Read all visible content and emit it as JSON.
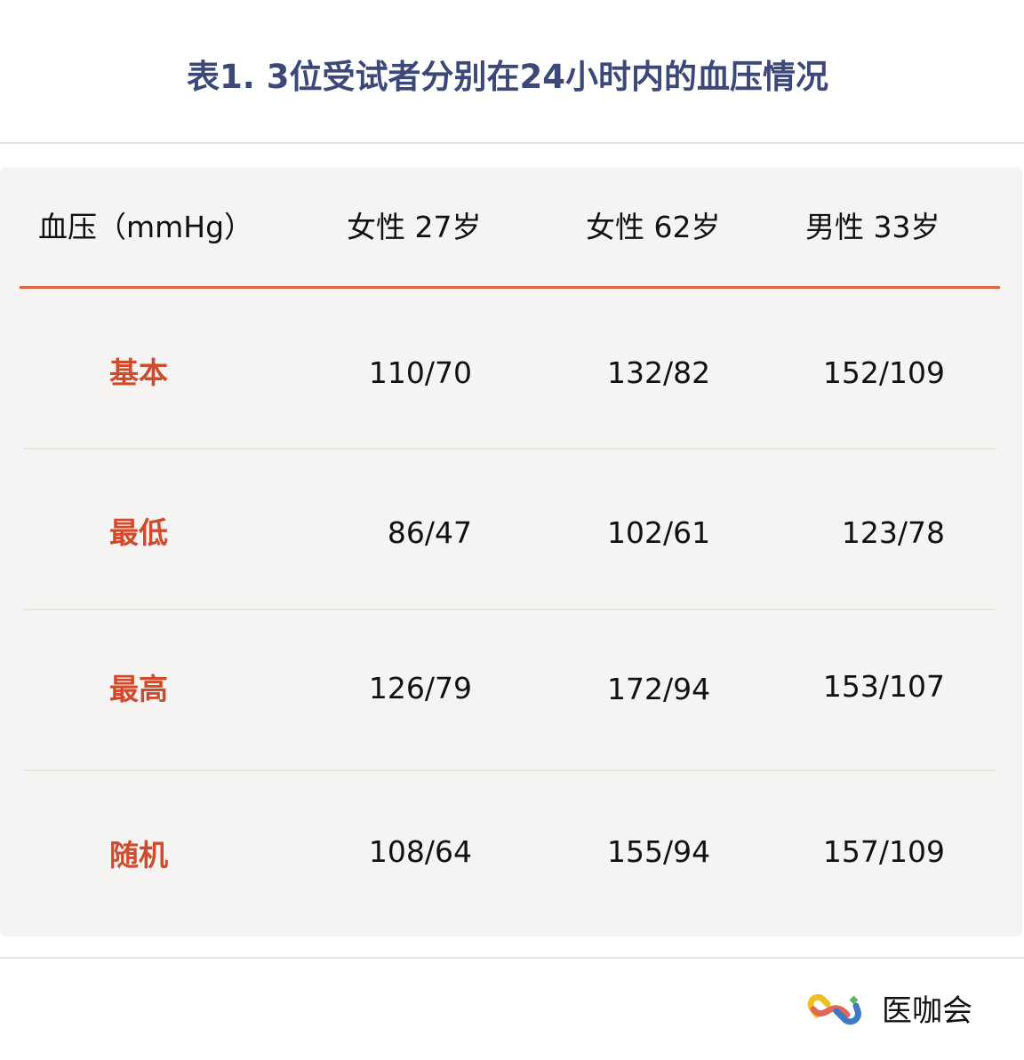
{
  "title": "表1. 3位受试者分别在24小时内的血压情况",
  "table": {
    "headers": [
      "血压（mmHg）",
      "女性 27岁",
      "女性 62岁",
      "男性 33岁"
    ],
    "rows": [
      {
        "label": "基本",
        "values": [
          "110/70",
          "132/82",
          "152/109"
        ]
      },
      {
        "label": "最低",
        "values": [
          "86/47",
          "102/61",
          "123/78"
        ]
      },
      {
        "label": "最高",
        "values": [
          "126/79",
          "172/94",
          "153/107"
        ]
      },
      {
        "label": "随机",
        "values": [
          "108/64",
          "155/94",
          "157/109"
        ]
      }
    ]
  },
  "colors": {
    "title": "#3c4878",
    "accent": "#d9663f",
    "row_label": "#d04a2c",
    "table_bg": "#f5f4f2"
  },
  "footer": {
    "brand": "医咖会",
    "logo_icon": "infinity-chain-logo-icon"
  }
}
